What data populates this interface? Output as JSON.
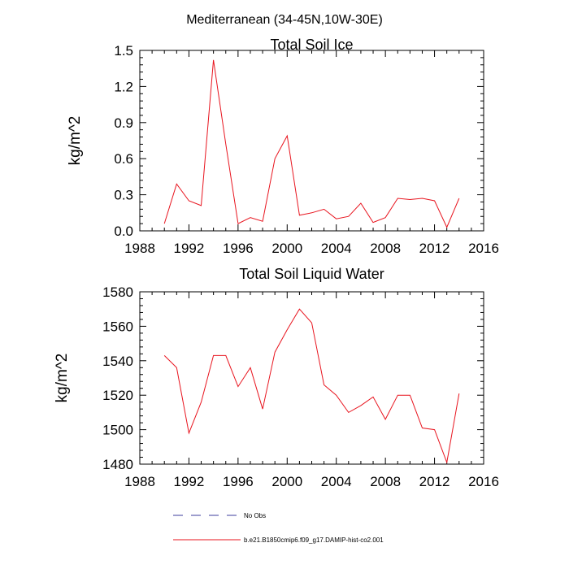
{
  "page": {
    "title": "Mediterranean (34-45N,10W-30E)"
  },
  "legend": [
    {
      "label": "No Obs",
      "color": "#3c3c9c",
      "dash": true
    },
    {
      "label": "b.e21.B1850cmip6.f09_g17.DAMIP-hist-co2.001",
      "color": "#e8141e",
      "dash": false
    }
  ],
  "chart_data": [
    {
      "type": "line",
      "title": "Total Soil Ice",
      "ylabel": "kg/m^2",
      "xlabel": "",
      "xlim": [
        1988,
        2016
      ],
      "ylim": [
        0,
        1.5
      ],
      "xticks": [
        1988,
        1992,
        1996,
        2000,
        2004,
        2008,
        2012,
        2016
      ],
      "xtick_labels": [
        "1988",
        "1992",
        "1996",
        "2000",
        "2004",
        "2008",
        "2012",
        "2016"
      ],
      "yticks": [
        0,
        0.3,
        0.6,
        0.9,
        1.2,
        1.5
      ],
      "ytick_labels": [
        "0.0",
        "0.3",
        "0.6",
        "0.9",
        "1.2",
        "1.5"
      ],
      "color": "#e8141e",
      "x": [
        1990,
        1991,
        1992,
        1993,
        1994,
        1995,
        1996,
        1997,
        1998,
        1999,
        2000,
        2001,
        2002,
        2003,
        2004,
        2005,
        2006,
        2007,
        2008,
        2009,
        2010,
        2011,
        2012,
        2013,
        2014
      ],
      "y": [
        0.06,
        0.39,
        0.25,
        0.21,
        1.42,
        0.72,
        0.06,
        0.11,
        0.08,
        0.6,
        0.79,
        0.13,
        0.15,
        0.18,
        0.1,
        0.12,
        0.23,
        0.07,
        0.11,
        0.27,
        0.26,
        0.27,
        0.25,
        0.03,
        0.27
      ]
    },
    {
      "type": "line",
      "title": "Total Soil Liquid Water",
      "ylabel": "kg/m^2",
      "xlabel": "",
      "xlim": [
        1988,
        2016
      ],
      "ylim": [
        1480,
        1580
      ],
      "xticks": [
        1988,
        1992,
        1996,
        2000,
        2004,
        2008,
        2012,
        2016
      ],
      "xtick_labels": [
        "1988",
        "1992",
        "1996",
        "2000",
        "2004",
        "2008",
        "2012",
        "2016"
      ],
      "yticks": [
        1480,
        1500,
        1520,
        1540,
        1560,
        1580
      ],
      "ytick_labels": [
        "1480",
        "1500",
        "1520",
        "1540",
        "1560",
        "1580"
      ],
      "color": "#e8141e",
      "x": [
        1990,
        1991,
        1992,
        1993,
        1994,
        1995,
        1996,
        1997,
        1998,
        1999,
        2000,
        2001,
        2002,
        2003,
        2004,
        2005,
        2006,
        2007,
        2008,
        2009,
        2010,
        2011,
        2012,
        2013,
        2014
      ],
      "y": [
        1543,
        1536,
        1498,
        1516,
        1543,
        1543,
        1525,
        1536,
        1512,
        1545,
        1558,
        1570,
        1562,
        1526,
        1520,
        1510,
        1514,
        1519,
        1506,
        1520,
        1520,
        1501,
        1500,
        1481,
        1521
      ]
    }
  ]
}
